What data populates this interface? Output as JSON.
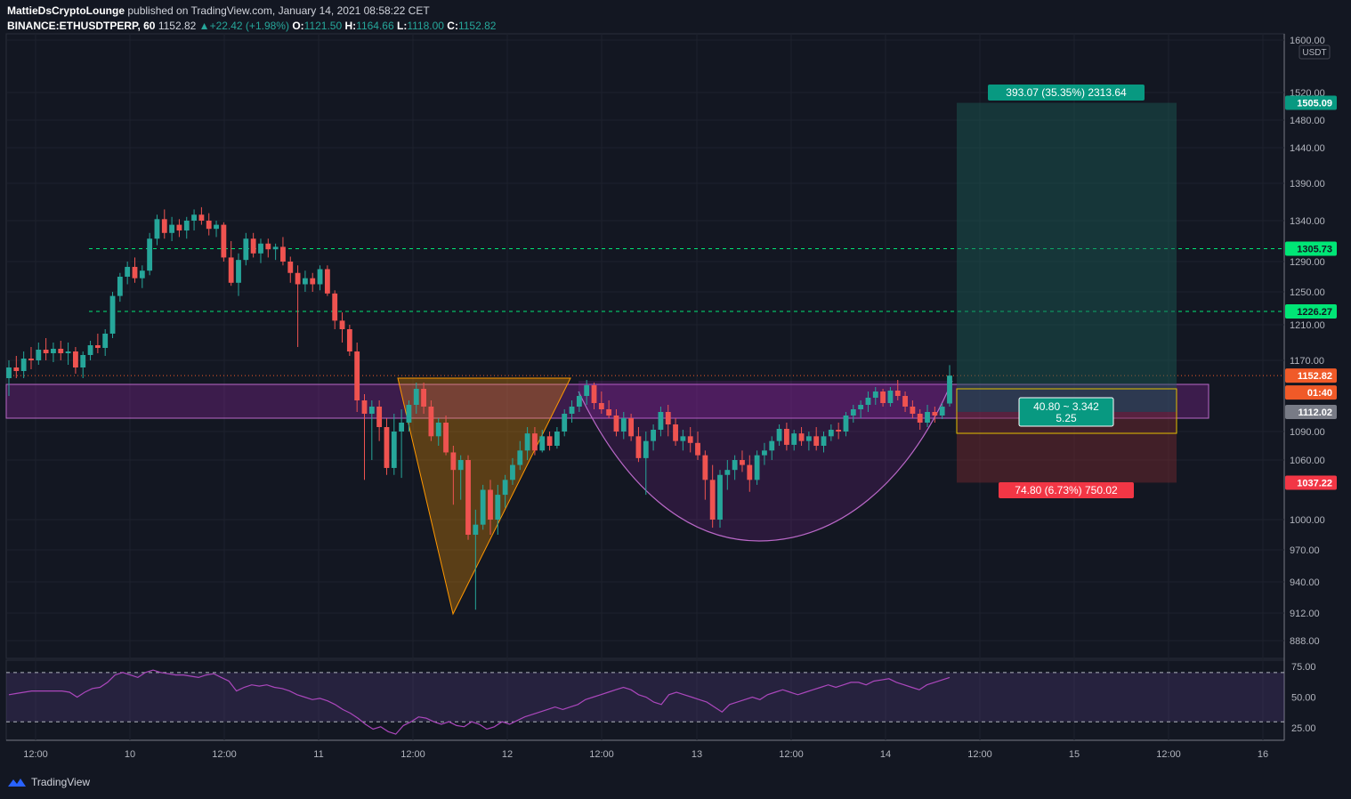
{
  "header": {
    "publisher": "MattieDsCryptoLounge",
    "published_text": "published on TradingView.com, January 14, 2021 08:58:22 CET",
    "symbol": "BINANCE:ETHUSDTPERP, 60",
    "last": "1152.82",
    "change": "+22.42 (+1.98%)",
    "o_label": "O:",
    "o": "1121.50",
    "h_label": "H:",
    "h": "1164.66",
    "l_label": "L:",
    "l": "1118.00",
    "c_label": "C:",
    "c": "1152.82"
  },
  "footer": {
    "brand": "TradingView"
  },
  "colors": {
    "background": "#131722",
    "up": "#26a69a",
    "down": "#ef5350",
    "purple_zone": "#9c27b0",
    "orange_triangle": "#ff9800",
    "target_zone": "#1a4a45",
    "stop_zone": "#4a1f23",
    "level_line": "#00e676"
  },
  "chart_data": {
    "type": "candlestick",
    "currency": "USDT",
    "y_ticks": [
      "1600.00",
      "1520.00",
      "1480.00",
      "1440.00",
      "1390.00",
      "1340.00",
      "1290.00",
      "1250.00",
      "1210.00",
      "1170.00",
      "1090.00",
      "1060.00",
      "1000.00",
      "970.00",
      "940.00",
      "912.00",
      "888.00"
    ],
    "x_ticks": [
      "12:00",
      "10",
      "12:00",
      "11",
      "12:00",
      "12",
      "12:00",
      "13",
      "12:00",
      "14",
      "12:00",
      "15",
      "12:00",
      "16"
    ],
    "price_labels": [
      {
        "text": "1505.09",
        "color": "#089981"
      },
      {
        "text": "1305.73",
        "color": "#00e676"
      },
      {
        "text": "1226.27",
        "color": "#00e676"
      },
      {
        "text": "1152.82",
        "color": "#f05a28"
      },
      {
        "text": "01:40",
        "color": "#f05a28"
      },
      {
        "text": "1112.02",
        "color": "#787b86"
      },
      {
        "text": "1037.22",
        "color": "#f23645"
      }
    ],
    "horizontal_levels": [
      1305.73,
      1226.27
    ],
    "resistance_zone": [
      1105,
      1143
    ],
    "trade": {
      "target_label": "393.07 (35.35%) 2313.64",
      "stop_label": "74.80 (6.73%) 750.02",
      "center_line1": "40.80 ~ 3.342",
      "center_line2": "5.25",
      "entry": 1112.02,
      "target": 1505.09,
      "stop": 1037.22
    },
    "patterns": [
      "inverted triangle (orange)",
      "rounded bottom (purple)"
    ],
    "candles": [
      [
        1150,
        1170,
        1130,
        1162
      ],
      [
        1162,
        1175,
        1150,
        1158
      ],
      [
        1158,
        1180,
        1150,
        1172
      ],
      [
        1172,
        1185,
        1160,
        1170
      ],
      [
        1170,
        1190,
        1165,
        1182
      ],
      [
        1182,
        1195,
        1170,
        1178
      ],
      [
        1178,
        1190,
        1168,
        1183
      ],
      [
        1183,
        1192,
        1170,
        1178
      ],
      [
        1178,
        1190,
        1165,
        1180
      ],
      [
        1180,
        1185,
        1155,
        1162
      ],
      [
        1162,
        1180,
        1150,
        1176
      ],
      [
        1176,
        1192,
        1170,
        1187
      ],
      [
        1187,
        1200,
        1178,
        1184
      ],
      [
        1184,
        1205,
        1175,
        1200
      ],
      [
        1200,
        1250,
        1195,
        1245
      ],
      [
        1245,
        1275,
        1238,
        1270
      ],
      [
        1270,
        1290,
        1260,
        1283
      ],
      [
        1283,
        1295,
        1262,
        1268
      ],
      [
        1268,
        1285,
        1255,
        1278
      ],
      [
        1278,
        1325,
        1272,
        1318
      ],
      [
        1318,
        1348,
        1310,
        1342
      ],
      [
        1342,
        1355,
        1318,
        1325
      ],
      [
        1325,
        1345,
        1315,
        1335
      ],
      [
        1335,
        1342,
        1320,
        1328
      ],
      [
        1328,
        1345,
        1318,
        1340
      ],
      [
        1340,
        1355,
        1328,
        1348
      ],
      [
        1348,
        1358,
        1335,
        1340
      ],
      [
        1340,
        1350,
        1322,
        1330
      ],
      [
        1330,
        1340,
        1320,
        1335
      ],
      [
        1335,
        1338,
        1290,
        1295
      ],
      [
        1295,
        1315,
        1258,
        1262
      ],
      [
        1262,
        1300,
        1245,
        1292
      ],
      [
        1292,
        1325,
        1285,
        1318
      ],
      [
        1318,
        1325,
        1295,
        1300
      ],
      [
        1300,
        1318,
        1288,
        1312
      ],
      [
        1312,
        1318,
        1295,
        1305
      ],
      [
        1305,
        1312,
        1292,
        1308
      ],
      [
        1308,
        1320,
        1285,
        1290
      ],
      [
        1290,
        1296,
        1262,
        1275
      ],
      [
        1275,
        1285,
        1185,
        1260
      ],
      [
        1260,
        1278,
        1250,
        1268
      ],
      [
        1268,
        1275,
        1250,
        1260
      ],
      [
        1260,
        1285,
        1252,
        1280
      ],
      [
        1280,
        1285,
        1245,
        1248
      ],
      [
        1248,
        1252,
        1205,
        1215
      ],
      [
        1215,
        1225,
        1190,
        1205
      ],
      [
        1205,
        1210,
        1175,
        1180
      ],
      [
        1180,
        1190,
        1112,
        1125
      ],
      [
        1125,
        1132,
        1040,
        1110
      ],
      [
        1110,
        1125,
        1060,
        1118
      ],
      [
        1118,
        1125,
        1080,
        1095
      ],
      [
        1095,
        1105,
        1045,
        1052
      ],
      [
        1052,
        1110,
        1045,
        1090
      ],
      [
        1090,
        1115,
        1042,
        1100
      ],
      [
        1100,
        1125,
        1090,
        1120
      ],
      [
        1120,
        1145,
        1110,
        1138
      ],
      [
        1138,
        1145,
        1110,
        1118
      ],
      [
        1118,
        1125,
        1080,
        1085
      ],
      [
        1085,
        1105,
        1075,
        1100
      ],
      [
        1100,
        1108,
        1065,
        1068
      ],
      [
        1068,
        1075,
        1015,
        1050
      ],
      [
        1050,
        1065,
        1020,
        1060
      ],
      [
        1060,
        1065,
        980,
        985
      ],
      [
        985,
        1010,
        915,
        995
      ],
      [
        995,
        1035,
        990,
        1030
      ],
      [
        1030,
        1040,
        985,
        1000
      ],
      [
        1000,
        1035,
        985,
        1025
      ],
      [
        1025,
        1045,
        1012,
        1040
      ],
      [
        1040,
        1062,
        1035,
        1055
      ],
      [
        1055,
        1080,
        1050,
        1070
      ],
      [
        1070,
        1095,
        1060,
        1088
      ],
      [
        1088,
        1095,
        1065,
        1070
      ],
      [
        1070,
        1092,
        1068,
        1085
      ],
      [
        1085,
        1090,
        1070,
        1075
      ],
      [
        1075,
        1095,
        1072,
        1090
      ],
      [
        1090,
        1115,
        1085,
        1110
      ],
      [
        1110,
        1125,
        1100,
        1118
      ],
      [
        1118,
        1135,
        1112,
        1130
      ],
      [
        1130,
        1148,
        1120,
        1142
      ],
      [
        1142,
        1145,
        1115,
        1122
      ],
      [
        1122,
        1135,
        1110,
        1115
      ],
      [
        1115,
        1125,
        1105,
        1108
      ],
      [
        1108,
        1115,
        1085,
        1090
      ],
      [
        1090,
        1112,
        1082,
        1105
      ],
      [
        1105,
        1110,
        1080,
        1085
      ],
      [
        1085,
        1095,
        1058,
        1062
      ],
      [
        1062,
        1090,
        1025,
        1080
      ],
      [
        1080,
        1098,
        1070,
        1092
      ],
      [
        1092,
        1118,
        1085,
        1112
      ],
      [
        1112,
        1120,
        1085,
        1098
      ],
      [
        1098,
        1105,
        1075,
        1080
      ],
      [
        1080,
        1092,
        1070,
        1085
      ],
      [
        1085,
        1095,
        1068,
        1078
      ],
      [
        1078,
        1090,
        1060,
        1065
      ],
      [
        1065,
        1070,
        1020,
        1040
      ],
      [
        1040,
        1055,
        992,
        1000
      ],
      [
        1000,
        1050,
        992,
        1045
      ],
      [
        1045,
        1060,
        1030,
        1050
      ],
      [
        1050,
        1065,
        1040,
        1060
      ],
      [
        1060,
        1070,
        1048,
        1055
      ],
      [
        1055,
        1065,
        1028,
        1040
      ],
      [
        1040,
        1070,
        1035,
        1065
      ],
      [
        1065,
        1078,
        1055,
        1070
      ],
      [
        1070,
        1085,
        1060,
        1080
      ],
      [
        1080,
        1098,
        1075,
        1093
      ],
      [
        1093,
        1100,
        1070,
        1076
      ],
      [
        1076,
        1092,
        1070,
        1088
      ],
      [
        1088,
        1095,
        1075,
        1080
      ],
      [
        1080,
        1090,
        1070,
        1085
      ],
      [
        1085,
        1095,
        1070,
        1075
      ],
      [
        1075,
        1090,
        1068,
        1085
      ],
      [
        1085,
        1098,
        1080,
        1092
      ],
      [
        1092,
        1100,
        1082,
        1090
      ],
      [
        1090,
        1112,
        1085,
        1108
      ],
      [
        1108,
        1120,
        1100,
        1115
      ],
      [
        1115,
        1125,
        1105,
        1120
      ],
      [
        1120,
        1135,
        1112,
        1128
      ],
      [
        1128,
        1140,
        1120,
        1135
      ],
      [
        1135,
        1138,
        1118,
        1122
      ],
      [
        1122,
        1140,
        1118,
        1136
      ],
      [
        1136,
        1148,
        1125,
        1130
      ],
      [
        1130,
        1135,
        1112,
        1118
      ],
      [
        1118,
        1125,
        1105,
        1110
      ],
      [
        1110,
        1115,
        1092,
        1100
      ],
      [
        1100,
        1120,
        1095,
        1112
      ],
      [
        1112,
        1118,
        1100,
        1108
      ],
      [
        1108,
        1122,
        1104,
        1118
      ],
      [
        1121.5,
        1164.66,
        1118,
        1152.82
      ]
    ],
    "rsi": {
      "ticks": [
        "75.00",
        "50.00",
        "25.00"
      ],
      "overbought": 70,
      "oversold": 30,
      "values": [
        52,
        53,
        54,
        55,
        55,
        55,
        55,
        55,
        54,
        50,
        54,
        57,
        58,
        62,
        68,
        70,
        68,
        66,
        70,
        72,
        70,
        69,
        68,
        68,
        67,
        66,
        68,
        69,
        66,
        63,
        55,
        58,
        60,
        59,
        60,
        58,
        57,
        55,
        52,
        50,
        48,
        49,
        47,
        44,
        40,
        37,
        33,
        28,
        24,
        26,
        22,
        20,
        27,
        30,
        34,
        33,
        30,
        28,
        30,
        27,
        26,
        30,
        28,
        24,
        26,
        30,
        28,
        31,
        34,
        36,
        38,
        40,
        42,
        40,
        42,
        44,
        48,
        50,
        52,
        54,
        56,
        58,
        56,
        52,
        50,
        46,
        44,
        52,
        54,
        52,
        50,
        48,
        46,
        42,
        38,
        44,
        46,
        48,
        50,
        48,
        52,
        54,
        56,
        54,
        52,
        54,
        56,
        58,
        60,
        58,
        60,
        62,
        62,
        60,
        63,
        64,
        65,
        62,
        60,
        58,
        56,
        60,
        62,
        64,
        66
      ]
    }
  }
}
